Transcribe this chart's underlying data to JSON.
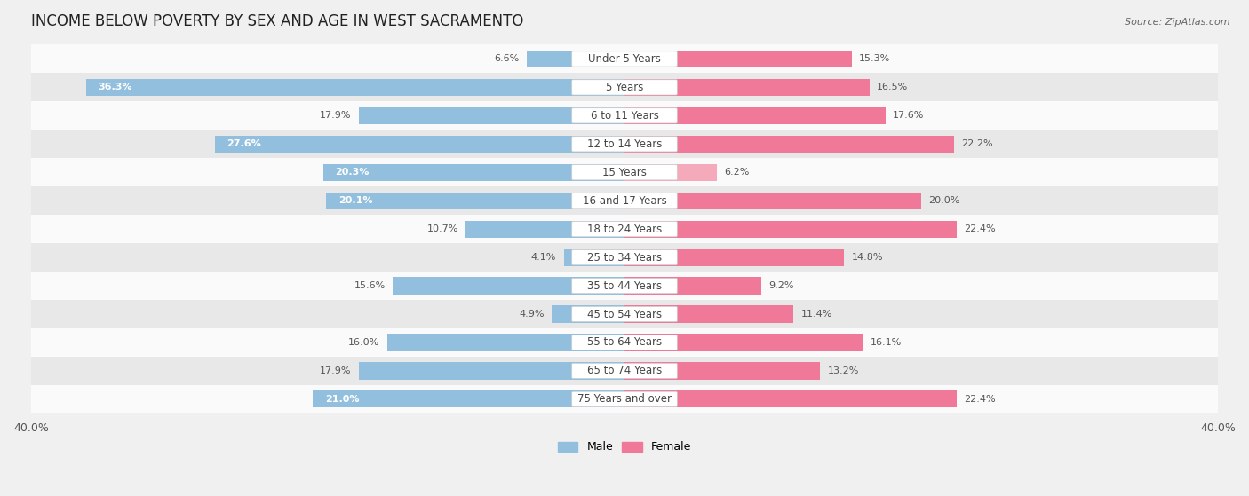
{
  "title": "INCOME BELOW POVERTY BY SEX AND AGE IN WEST SACRAMENTO",
  "source": "Source: ZipAtlas.com",
  "categories": [
    "Under 5 Years",
    "5 Years",
    "6 to 11 Years",
    "12 to 14 Years",
    "15 Years",
    "16 and 17 Years",
    "18 to 24 Years",
    "25 to 34 Years",
    "35 to 44 Years",
    "45 to 54 Years",
    "55 to 64 Years",
    "65 to 74 Years",
    "75 Years and over"
  ],
  "male": [
    6.6,
    36.3,
    17.9,
    27.6,
    20.3,
    20.1,
    10.7,
    4.1,
    15.6,
    4.9,
    16.0,
    17.9,
    21.0
  ],
  "female": [
    15.3,
    16.5,
    17.6,
    22.2,
    6.2,
    20.0,
    22.4,
    14.8,
    9.2,
    11.4,
    16.1,
    13.2,
    22.4
  ],
  "male_color": "#92bfde",
  "female_color": "#f07898",
  "female_color_light": "#f5aabb",
  "male_label": "Male",
  "female_label": "Female",
  "axis_limit": 40.0,
  "background_color": "#f0f0f0",
  "row_bg_light": "#fafafa",
  "row_bg_dark": "#e8e8e8",
  "title_fontsize": 12,
  "label_fontsize": 8.5,
  "value_fontsize": 8,
  "source_fontsize": 8
}
